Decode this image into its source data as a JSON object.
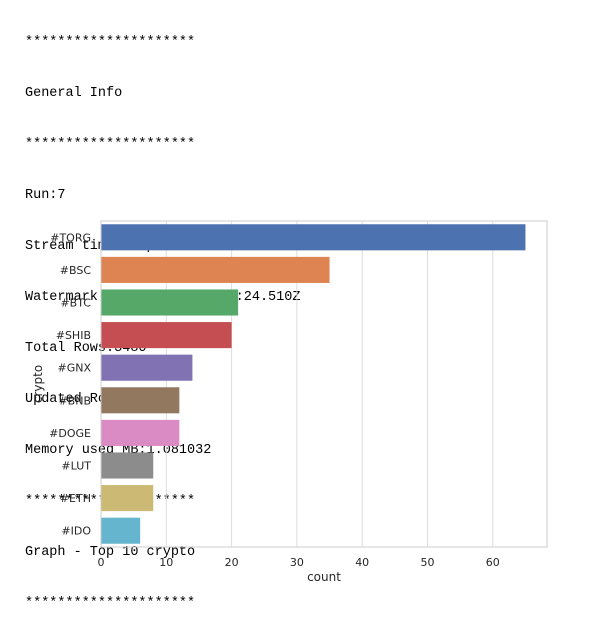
{
  "console": {
    "lines": [
      "*********************",
      "General Info",
      "*********************",
      "Run:7",
      "Stream timestamp:2021-10-04T14:52:31.283Z",
      "Watermark:2021-10-04T14:47:24.510Z",
      "Total Rows:3480",
      "Updated Rows:183",
      "Memory used MB:1.081032",
      "*********************",
      "Graph - Top 10 crypto",
      "*********************"
    ]
  },
  "chart_data": {
    "type": "bar",
    "orientation": "horizontal",
    "categories": [
      "#TORG",
      "#BSC",
      "#BTC",
      "#SHIB",
      "#GNX",
      "#BNB",
      "#DOGE",
      "#LUT",
      "#ETH",
      "#IDO"
    ],
    "values": [
      65,
      35,
      21,
      20,
      14,
      12,
      12,
      8,
      8,
      6
    ],
    "colors": [
      "#4c72b0",
      "#dd8452",
      "#55a868",
      "#c44e52",
      "#8172b3",
      "#937860",
      "#da8bc3",
      "#8c8c8c",
      "#ccb974",
      "#64b5cd"
    ],
    "xlabel": "count",
    "ylabel": "crypto",
    "xlim": [
      0,
      68.3
    ],
    "xticks": [
      0,
      10,
      20,
      30,
      40,
      50,
      60
    ],
    "grid": true
  }
}
